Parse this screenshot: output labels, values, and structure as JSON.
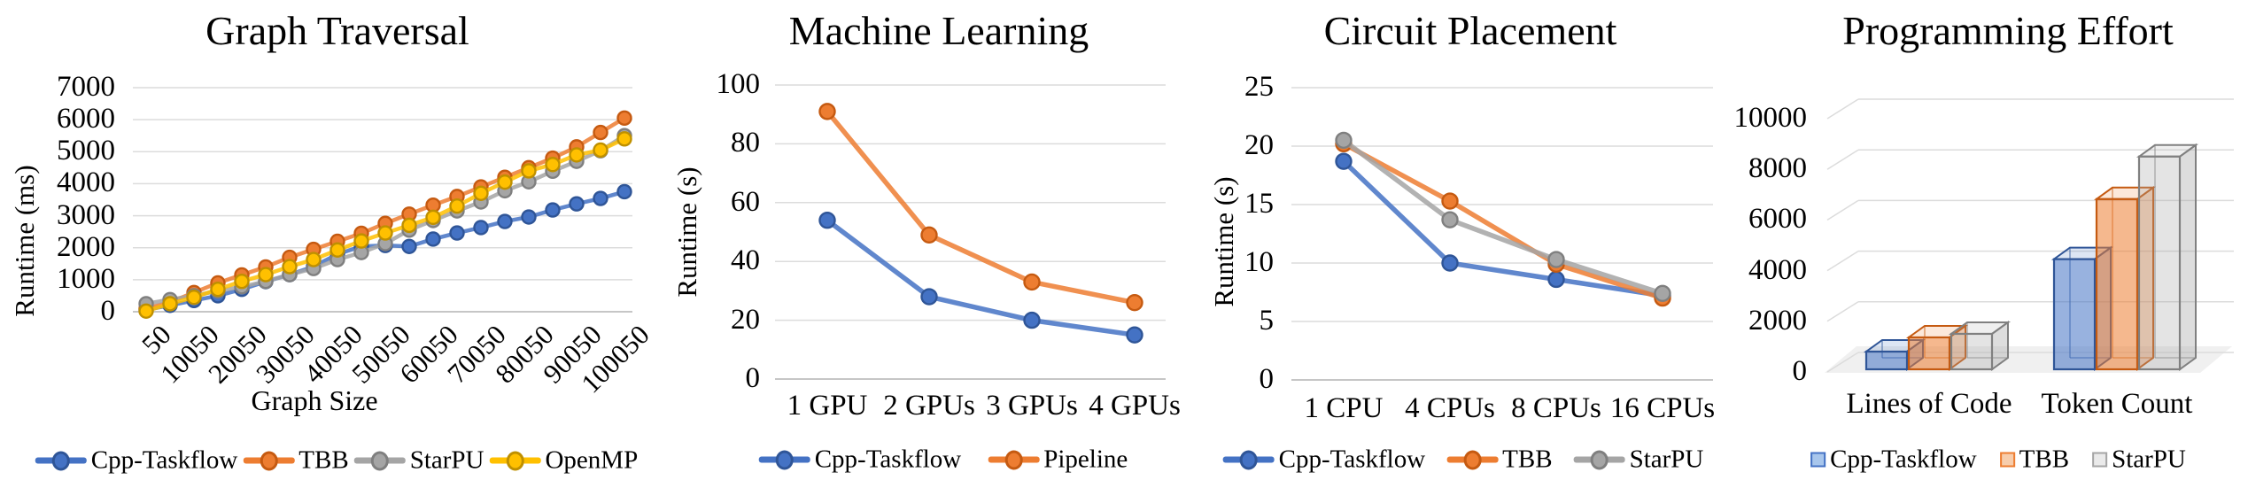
{
  "page": {
    "background": "#ffffff"
  },
  "chart_data": [
    {
      "key": "graph_traversal",
      "type": "line",
      "title": "Graph Traversal",
      "ylabel": "Runtime (ms)",
      "xlabel": "Graph Size",
      "ylim": [
        0,
        7000
      ],
      "yticks": [
        0,
        1000,
        2000,
        3000,
        4000,
        5000,
        6000,
        7000
      ],
      "grid": true,
      "legend_position": "bottom",
      "categories": [
        50,
        5050,
        10050,
        15050,
        20050,
        25050,
        30050,
        35050,
        40050,
        45050,
        50050,
        55050,
        60050,
        65050,
        70050,
        75050,
        80050,
        85050,
        90050,
        95050,
        100050
      ],
      "xticklabels": [
        "50",
        "10050",
        "20050",
        "30050",
        "40050",
        "50050",
        "60050",
        "70050",
        "80050",
        "90050",
        "100050"
      ],
      "series": [
        {
          "name": "Cpp-Taskflow",
          "color": "#4472C4",
          "edge": "#2F5597",
          "values": [
            60,
            200,
            350,
            500,
            700,
            940,
            1160,
            1410,
            1800,
            2040,
            2070,
            2040,
            2270,
            2460,
            2630,
            2820,
            2960,
            3180,
            3370,
            3540,
            3750
          ]
        },
        {
          "name": "TBB",
          "color": "#ED7D31",
          "edge": "#C55A11",
          "values": [
            100,
            300,
            600,
            900,
            1150,
            1400,
            1700,
            1950,
            2200,
            2450,
            2760,
            3050,
            3330,
            3600,
            3900,
            4200,
            4500,
            4800,
            5150,
            5600,
            6050
          ]
        },
        {
          "name": "StarPU",
          "color": "#A5A5A5",
          "edge": "#7F7F7F",
          "values": [
            250,
            380,
            500,
            650,
            780,
            950,
            1160,
            1350,
            1630,
            1850,
            2130,
            2550,
            2850,
            3150,
            3430,
            3780,
            4060,
            4390,
            4700,
            5030,
            5500
          ]
        },
        {
          "name": "OpenMP",
          "color": "#FFC000",
          "edge": "#BF9000",
          "values": [
            20,
            250,
            450,
            700,
            950,
            1160,
            1410,
            1630,
            1930,
            2210,
            2460,
            2700,
            2950,
            3300,
            3700,
            4050,
            4400,
            4600,
            4900,
            5050,
            5400
          ]
        }
      ]
    },
    {
      "key": "machine_learning",
      "type": "line",
      "title": "Machine Learning",
      "ylabel": "Runtime (s)",
      "xlabel": "",
      "ylim": [
        0,
        100
      ],
      "yticks": [
        0,
        20,
        40,
        60,
        80,
        100
      ],
      "grid": true,
      "legend_position": "bottom",
      "categories": [
        "1 GPU",
        "2 GPUs",
        "3 GPUs",
        "4 GPUs"
      ],
      "series": [
        {
          "name": "Cpp-Taskflow",
          "color": "#4472C4",
          "edge": "#2F5597",
          "values": [
            54,
            28,
            20,
            15
          ]
        },
        {
          "name": "Pipeline",
          "color": "#ED7D31",
          "edge": "#C55A11",
          "values": [
            91,
            49,
            33,
            26
          ]
        }
      ]
    },
    {
      "key": "circuit_placement",
      "type": "line",
      "title": "Circuit Placement",
      "ylabel": "Runtime (s)",
      "xlabel": "",
      "ylim": [
        0,
        25
      ],
      "yticks": [
        0,
        5,
        10,
        15,
        20,
        25
      ],
      "grid": true,
      "legend_position": "bottom",
      "categories": [
        "1 CPU",
        "4 CPUs",
        "8 CPUs",
        "16 CPUs"
      ],
      "series": [
        {
          "name": "Cpp-Taskflow",
          "color": "#4472C4",
          "edge": "#2F5597",
          "values": [
            18.7,
            10.0,
            8.6,
            7.2
          ]
        },
        {
          "name": "TBB",
          "color": "#ED7D31",
          "edge": "#C55A11",
          "values": [
            20.2,
            15.3,
            9.9,
            7.0
          ]
        },
        {
          "name": "StarPU",
          "color": "#A5A5A5",
          "edge": "#7F7F7F",
          "values": [
            20.5,
            13.7,
            10.3,
            7.4
          ]
        }
      ]
    },
    {
      "key": "programming_effort",
      "type": "bar3d",
      "title": "Programming Effort",
      "ylabel": "",
      "xlabel": "",
      "ylim": [
        0,
        10000
      ],
      "yticks": [
        0,
        2000,
        4000,
        6000,
        8000,
        10000
      ],
      "grid": true,
      "legend_position": "bottom",
      "categories": [
        "Lines of Code",
        "Token Count"
      ],
      "series": [
        {
          "name": "Cpp-Taskflow",
          "color": "#4472C4",
          "edge": "#2F5597",
          "fill": "#A8C6EC",
          "values": [
            700,
            4350
          ]
        },
        {
          "name": "TBB",
          "color": "#ED7D31",
          "edge": "#C55A11",
          "fill": "#F7CDAC",
          "values": [
            1260,
            6720
          ]
        },
        {
          "name": "StarPU",
          "color": "#A5A5A5",
          "edge": "#808080",
          "fill": "#EAEAEA",
          "values": [
            1400,
            8400
          ]
        }
      ]
    }
  ]
}
